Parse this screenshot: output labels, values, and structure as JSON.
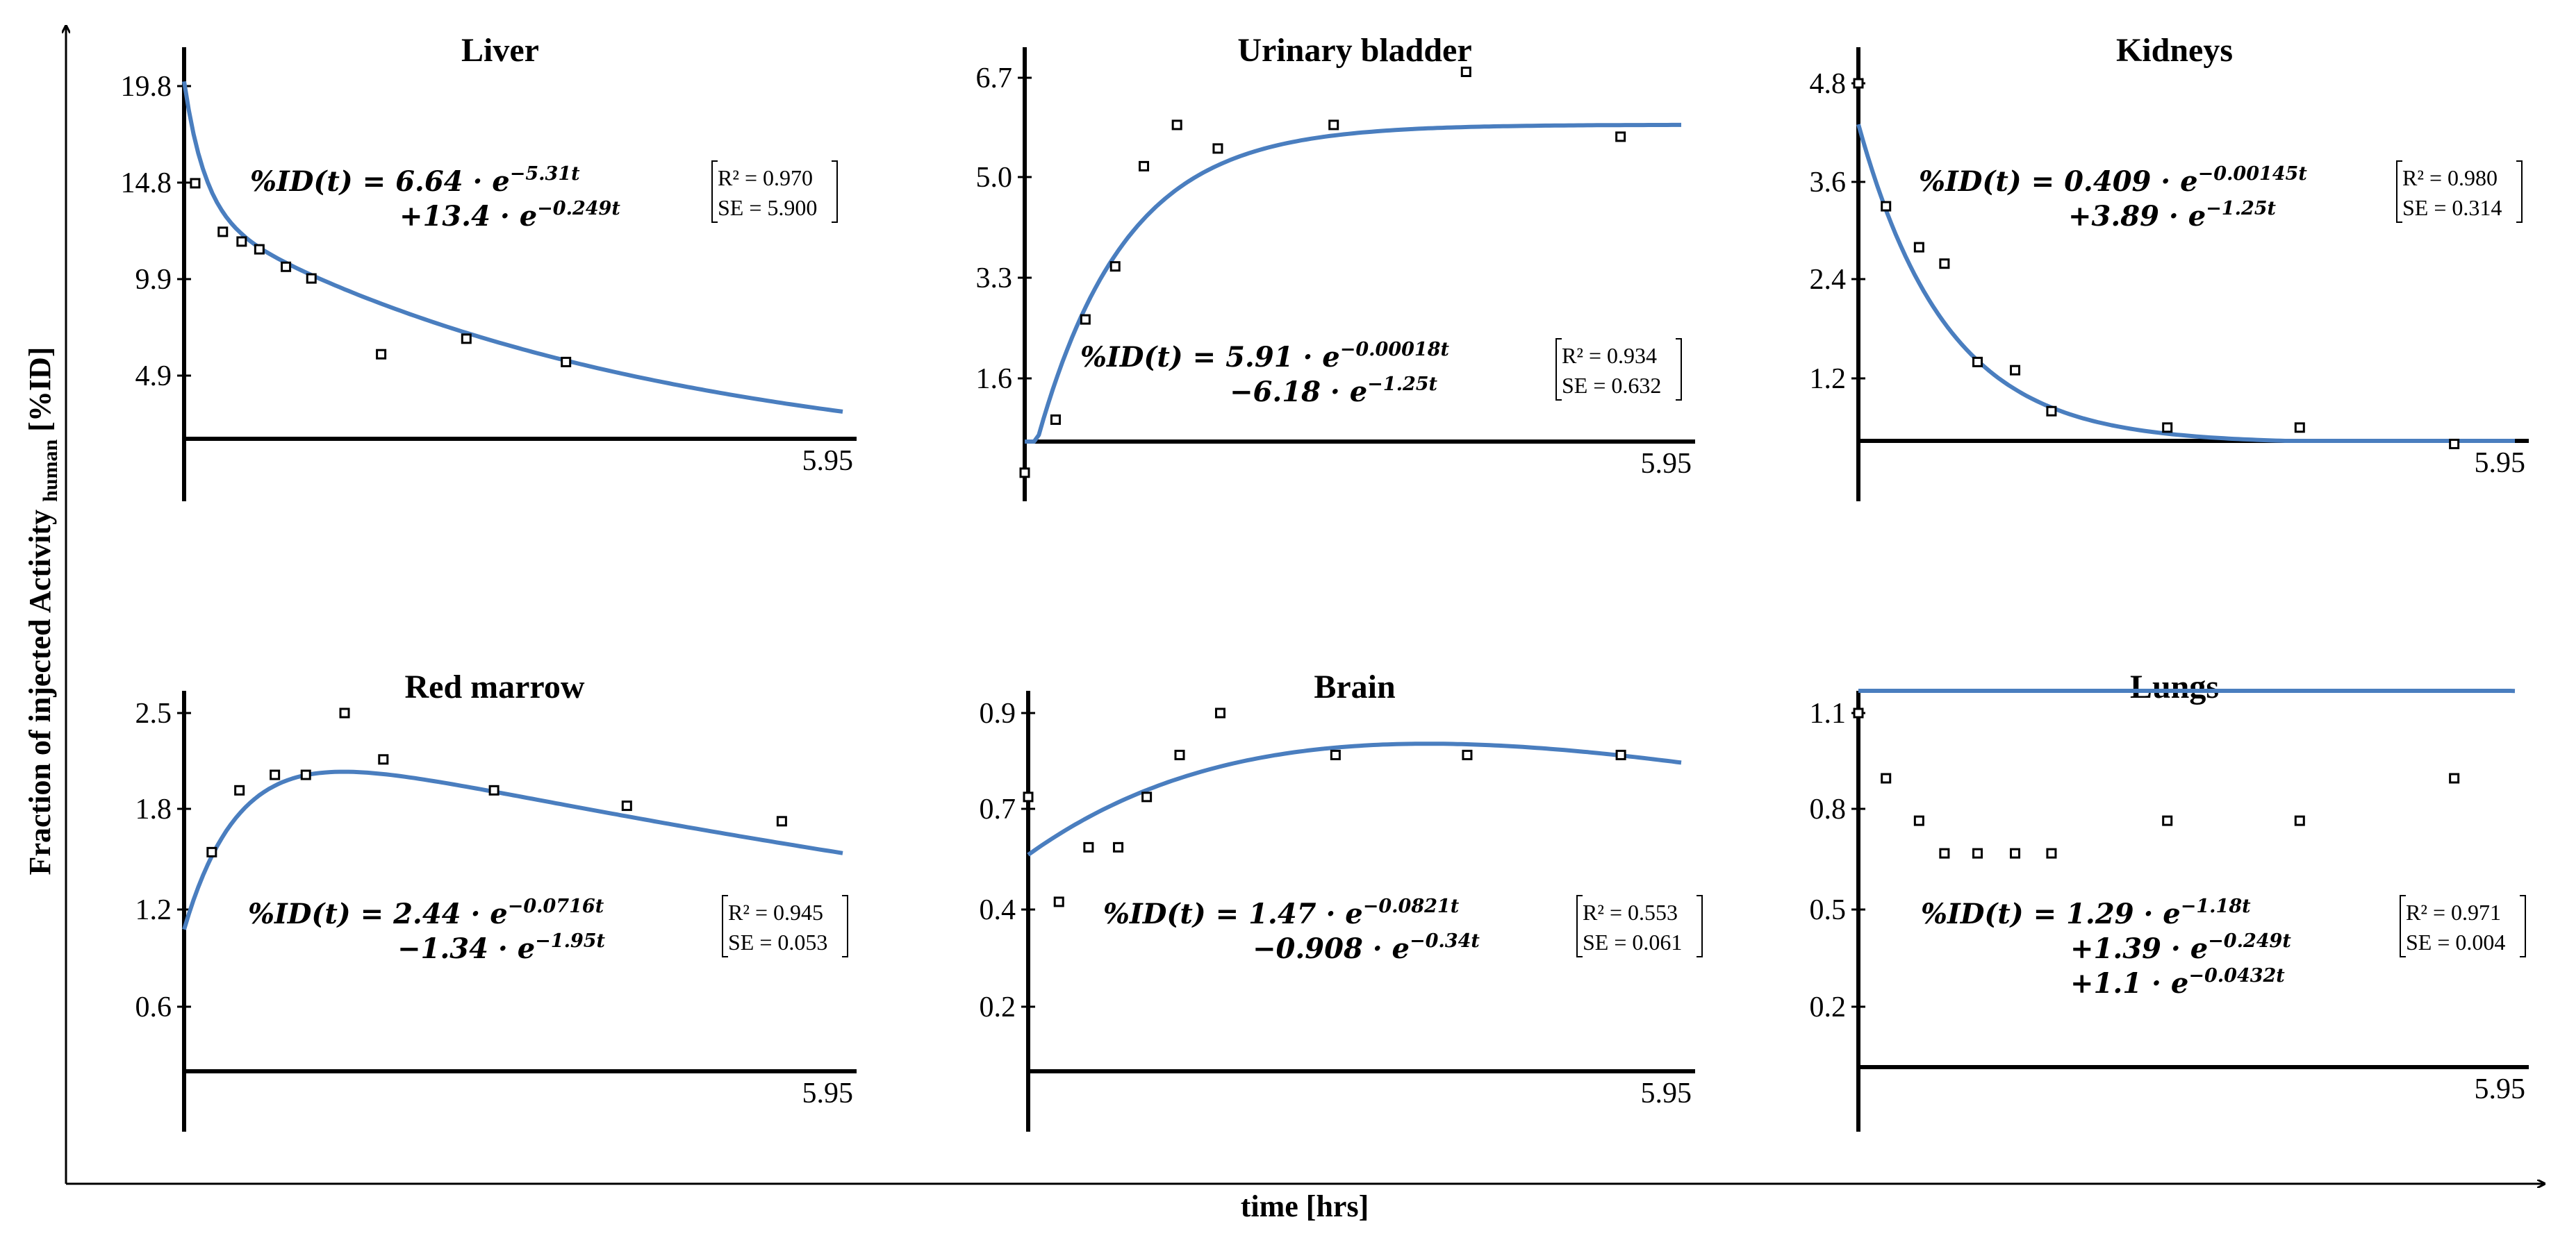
{
  "figure": {
    "xlabel": "time [hrs]",
    "ylabel_prefix": "Fraction of injected Activity",
    "ylabel_subscript": "human",
    "ylabel_suffix": " [%ID]"
  },
  "colors": {
    "fit_line": "#4a7ebf",
    "axis": "#000000",
    "marker": "#000000"
  },
  "chart_data": [
    {
      "type": "scatter",
      "title": "Liver",
      "xlim": [
        0,
        5.95
      ],
      "xtick_end_label": "5.95",
      "ylim": [
        0,
        19.8
      ],
      "yticks": [
        4.9,
        9.9,
        14.8,
        19.8
      ],
      "ytick_labels": [
        "4.9",
        "9.9",
        "14.8",
        "19.8"
      ],
      "points": {
        "x": [
          0.1,
          0.35,
          0.52,
          0.68,
          0.92,
          1.15,
          1.78,
          2.55,
          3.45
        ],
        "y": [
          14.8,
          12.3,
          11.8,
          11.4,
          10.5,
          9.9,
          6.0,
          6.8,
          5.6
        ]
      },
      "fit": {
        "terms": [
          {
            "a": 6.64,
            "k": 5.31
          },
          {
            "a": 13.4,
            "k": 0.249
          }
        ]
      },
      "equation_lines": [
        {
          "lhs": "%ID(t) = ",
          "sign": "",
          "coef": "6.64",
          "mult": " · e",
          "exp": "−5.31t"
        },
        {
          "lhs": "",
          "sign": "+",
          "coef": "13.4",
          "mult": " · e",
          "exp": "−0.249t"
        }
      ],
      "fit_stats": {
        "r2_label": "R² = 0.970",
        "se_label": "SE = 5.900"
      }
    },
    {
      "type": "scatter",
      "title": "Urinary bladder",
      "xlim": [
        0,
        5.95
      ],
      "xtick_end_label": "5.95",
      "ylim": [
        0,
        6.7
      ],
      "yticks": [
        1.6,
        3.3,
        5.0,
        6.7
      ],
      "ytick_labels": [
        "1.6",
        "3.3",
        "5.0",
        "6.7"
      ],
      "points": {
        "x": [
          0.0,
          0.28,
          0.55,
          0.82,
          1.08,
          1.38,
          1.75,
          2.8,
          4.0,
          5.4
        ],
        "y": [
          0.0,
          0.9,
          2.6,
          3.5,
          5.2,
          5.9,
          5.5,
          5.9,
          6.8,
          5.7
        ]
      },
      "fit": {
        "terms": [
          {
            "a": 5.91,
            "k": 0.00018
          },
          {
            "a": -6.18,
            "k": 1.25
          }
        ]
      },
      "equation_lines": [
        {
          "lhs": "%ID(t) = ",
          "sign": "",
          "coef": "5.91",
          "mult": " · e",
          "exp": "−0.00018t"
        },
        {
          "lhs": "",
          "sign": "−",
          "coef": "6.18",
          "mult": " · e",
          "exp": "−1.25t"
        }
      ],
      "fit_stats": {
        "r2_label": "R² = 0.934",
        "se_label": "SE = 0.632"
      }
    },
    {
      "type": "scatter",
      "title": "Kidneys",
      "xlim": [
        0,
        5.95
      ],
      "xtick_end_label": "5.95",
      "ylim": [
        0,
        4.8
      ],
      "yticks": [
        1.2,
        2.4,
        3.6,
        4.8
      ],
      "ytick_labels": [
        "1.2",
        "2.4",
        "3.6",
        "4.8"
      ],
      "points": {
        "x": [
          0.0,
          0.25,
          0.55,
          0.78,
          1.08,
          1.42,
          1.75,
          2.8,
          4.0,
          5.4
        ],
        "y": [
          4.8,
          3.3,
          2.8,
          2.6,
          1.4,
          1.3,
          0.8,
          0.6,
          0.6,
          0.4
        ]
      },
      "fit": {
        "terms": [
          {
            "a": 0.409,
            "k": 0.00145
          },
          {
            "a": 3.89,
            "k": 1.25
          }
        ]
      },
      "equation_lines": [
        {
          "lhs": "%ID(t) = ",
          "sign": "",
          "coef": "0.409",
          "mult": " · e",
          "exp": "−0.00145t"
        },
        {
          "lhs": "",
          "sign": "+",
          "coef": "3.89",
          "mult": " · e",
          "exp": "−1.25t"
        }
      ],
      "fit_stats": {
        "r2_label": "R² = 0.980",
        "se_label": "SE = 0.314"
      }
    },
    {
      "type": "scatter",
      "title": "Red marrow",
      "xlim": [
        0,
        5.95
      ],
      "xtick_end_label": "5.95",
      "ylim": [
        0,
        2.5
      ],
      "yticks": [
        0.6,
        1.2,
        1.8,
        2.5
      ],
      "ytick_labels": [
        "0.6",
        "1.2",
        "1.8",
        "2.5"
      ],
      "points": {
        "x": [
          0.25,
          0.5,
          0.82,
          1.1,
          1.45,
          1.8,
          2.8,
          4.0,
          5.4
        ],
        "y": [
          1.6,
          2.0,
          2.1,
          2.1,
          2.5,
          2.2,
          2.0,
          1.9,
          1.8
        ]
      },
      "fit": {
        "terms": [
          {
            "a": 2.44,
            "k": 0.0716
          },
          {
            "a": -1.34,
            "k": 1.95
          }
        ]
      },
      "equation_lines": [
        {
          "lhs": "%ID(t) = ",
          "sign": "",
          "coef": "2.44",
          "mult": " · e",
          "exp": "−0.0716t"
        },
        {
          "lhs": "",
          "sign": "−",
          "coef": "1.34",
          "mult": " · e",
          "exp": "−1.95t"
        }
      ],
      "fit_stats": {
        "r2_label": "R² = 0.945",
        "se_label": "SE = 0.053"
      }
    },
    {
      "type": "scatter",
      "title": "Brain",
      "xlim": [
        0,
        5.95
      ],
      "xtick_end_label": "5.95",
      "ylim": [
        0,
        0.9
      ],
      "yticks": [
        0.2,
        0.4,
        0.7,
        0.9
      ],
      "ytick_labels": [
        "0.2",
        "0.4",
        "0.7",
        "0.9"
      ],
      "points": {
        "x": [
          0.0,
          0.28,
          0.55,
          0.82,
          1.08,
          1.38,
          1.75,
          2.8,
          4.0,
          5.4
        ],
        "y": [
          0.7,
          0.45,
          0.58,
          0.58,
          0.7,
          0.8,
          0.9,
          0.8,
          0.8,
          0.8
        ]
      },
      "fit": {
        "terms": [
          {
            "a": 1.47,
            "k": 0.0821
          },
          {
            "a": -0.908,
            "k": 0.34
          }
        ]
      },
      "equation_lines": [
        {
          "lhs": "%ID(t) = ",
          "sign": "",
          "coef": "1.47",
          "mult": " · e",
          "exp": "−0.0821t"
        },
        {
          "lhs": "",
          "sign": "−",
          "coef": "0.908",
          "mult": " · e",
          "exp": "−0.34t"
        }
      ],
      "fit_stats": {
        "r2_label": "R² = 0.553",
        "se_label": "SE = 0.061"
      }
    },
    {
      "type": "scatter",
      "title": "Lungs",
      "xlim": [
        0,
        5.95
      ],
      "xtick_end_label": "5.95",
      "ylim": [
        0,
        1.1
      ],
      "yticks": [
        0.2,
        0.5,
        0.8,
        1.1
      ],
      "ytick_labels": [
        "0.2",
        "0.5",
        "0.8",
        "1.1"
      ],
      "points": {
        "x": [
          0.0,
          0.25,
          0.55,
          0.78,
          1.08,
          1.42,
          1.75,
          2.8,
          4.0,
          5.4
        ],
        "y": [
          1.1,
          0.9,
          0.77,
          0.67,
          0.67,
          0.67,
          0.67,
          0.77,
          0.77,
          0.9
        ]
      },
      "fit": {
        "terms": [
          {
            "a": 1.29,
            "k": 1.18
          },
          {
            "a": 1.39,
            "k": 0.249
          },
          {
            "a": 1.1,
            "k": 0.0432
          }
        ]
      },
      "equation_lines": [
        {
          "lhs": "%ID(t) = ",
          "sign": "",
          "coef": "1.29",
          "mult": " · e",
          "exp": "−1.18t"
        },
        {
          "lhs": "",
          "sign": "+",
          "coef": "1.39",
          "mult": " · e",
          "exp": "−0.249t"
        },
        {
          "lhs": "",
          "sign": "+",
          "coef": "1.1",
          "mult": " · e",
          "exp": "−0.0432t"
        }
      ],
      "fit_stats": {
        "r2_label": "R² = 0.971",
        "se_label": "SE = 0.004"
      }
    }
  ]
}
